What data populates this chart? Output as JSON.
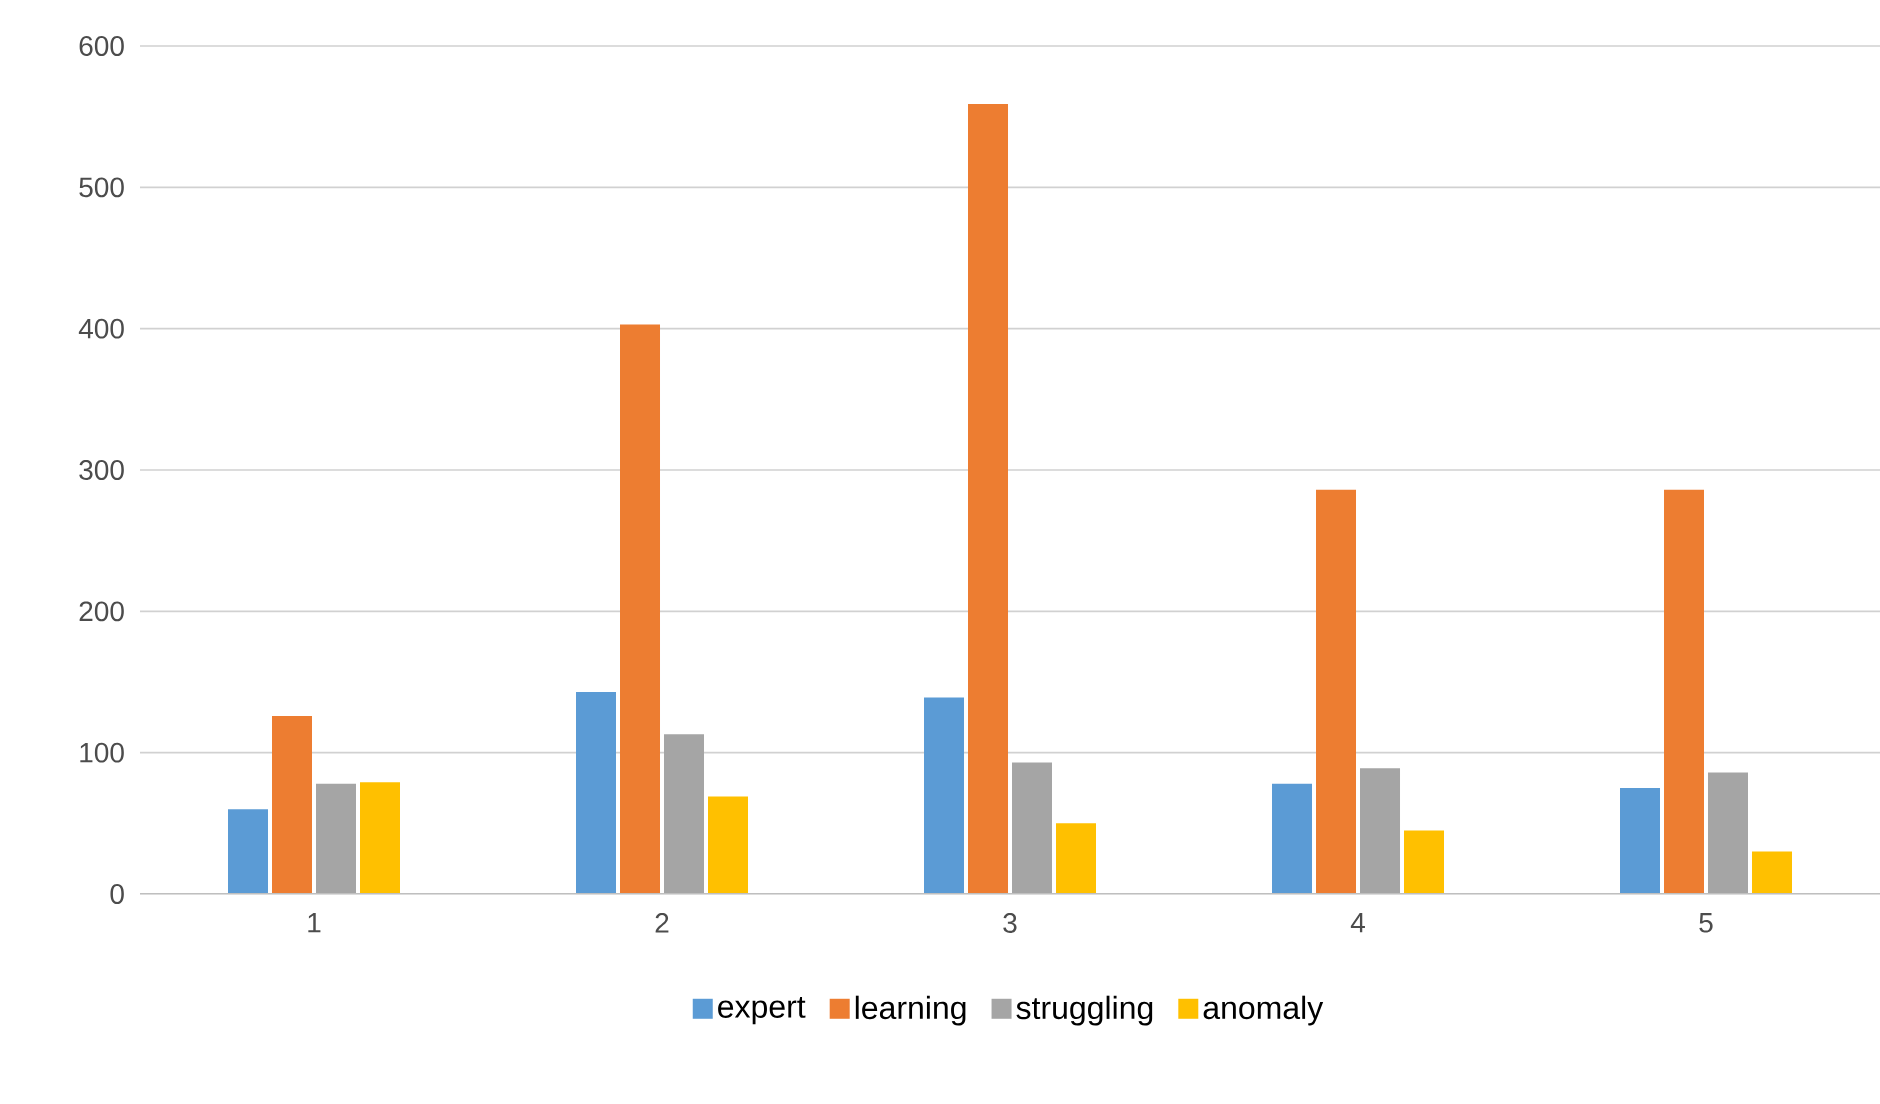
{
  "chart_data": {
    "type": "bar",
    "categories": [
      "1",
      "2",
      "3",
      "4",
      "5"
    ],
    "series": [
      {
        "name": "expert",
        "color": "#5b9bd5",
        "values": [
          60,
          143,
          139,
          78,
          75
        ]
      },
      {
        "name": "learning",
        "color": "#ed7d31",
        "values": [
          126,
          403,
          559,
          286,
          286
        ]
      },
      {
        "name": "struggling",
        "color": "#a5a5a5",
        "values": [
          78,
          113,
          93,
          89,
          86
        ]
      },
      {
        "name": "anomaly",
        "color": "#ffc000",
        "values": [
          79,
          69,
          50,
          45,
          30
        ]
      }
    ],
    "ylim": [
      0,
      600
    ],
    "yticks": [
      0,
      100,
      200,
      300,
      400,
      500,
      600
    ],
    "grid": "y",
    "legend": "bottom"
  }
}
